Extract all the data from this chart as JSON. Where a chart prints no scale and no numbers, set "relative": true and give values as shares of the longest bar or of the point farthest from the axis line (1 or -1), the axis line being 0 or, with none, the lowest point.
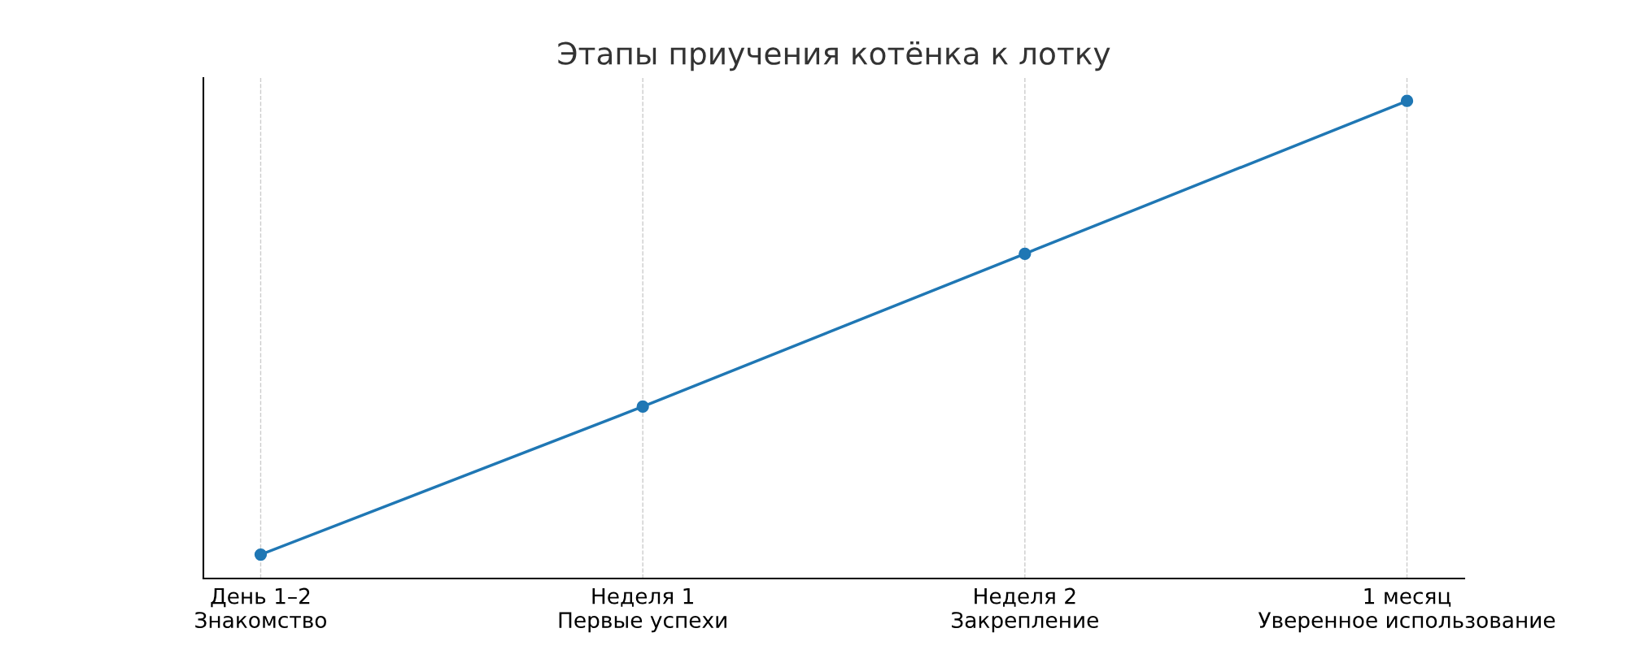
{
  "chart_data": {
    "type": "line",
    "title": "Этапы приучения котёнка к лотку",
    "categories": [
      "День 1–2\nЗнакомство",
      "Неделя 1\nПервые успехи",
      "Неделя 2\nЗакрепление",
      "1 месяц\nУверенное использование"
    ],
    "series": [
      {
        "color": "#1f77b4",
        "values": [
          0.05,
          0.36,
          0.68,
          1
        ]
      }
    ],
    "relative": true,
    "grid": "x",
    "marker": "circle",
    "line_style": "solid"
  }
}
